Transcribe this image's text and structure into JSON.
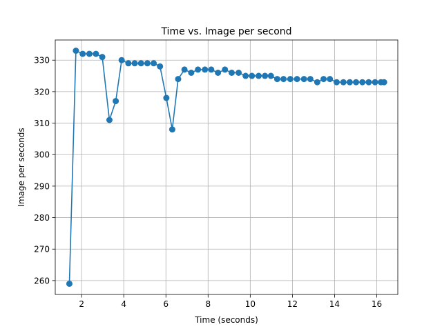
{
  "chart_data": {
    "type": "line",
    "title": "Time vs. Image per second",
    "xlabel": "Time (seconds)",
    "ylabel": "Image per seconds",
    "xlim": [
      0.75,
      17.0
    ],
    "ylim": [
      255.6,
      336.4
    ],
    "xticks": [
      2,
      4,
      6,
      8,
      10,
      12,
      14,
      16
    ],
    "yticks": [
      260,
      270,
      280,
      290,
      300,
      310,
      320,
      330
    ],
    "grid": true,
    "legend": "none",
    "series": [
      {
        "color": "#1f77b4",
        "marker": "circle",
        "x": [
          1.42,
          1.73,
          2.05,
          2.37,
          2.68,
          2.98,
          3.32,
          3.62,
          3.9,
          4.22,
          4.52,
          4.82,
          5.12,
          5.42,
          5.72,
          6.02,
          6.3,
          6.58,
          6.88,
          7.2,
          7.52,
          7.85,
          8.15,
          8.47,
          8.8,
          9.12,
          9.45,
          9.78,
          10.08,
          10.4,
          10.7,
          10.98,
          11.28,
          11.58,
          11.9,
          12.22,
          12.55,
          12.85,
          13.18,
          13.48,
          13.78,
          14.1,
          14.42,
          14.72,
          15.02,
          15.32,
          15.62,
          15.92,
          16.2,
          16.35
        ],
        "y": [
          259,
          333,
          332,
          332,
          332,
          331,
          311,
          317,
          330,
          329,
          329,
          329,
          329,
          329,
          328,
          318,
          308,
          324,
          327,
          326,
          327,
          327,
          327,
          326,
          327,
          326,
          326,
          325,
          325,
          325,
          325,
          325,
          324,
          324,
          324,
          324,
          324,
          324,
          323,
          324,
          324,
          323,
          323,
          323,
          323,
          323,
          323,
          323,
          323,
          323
        ]
      }
    ]
  }
}
